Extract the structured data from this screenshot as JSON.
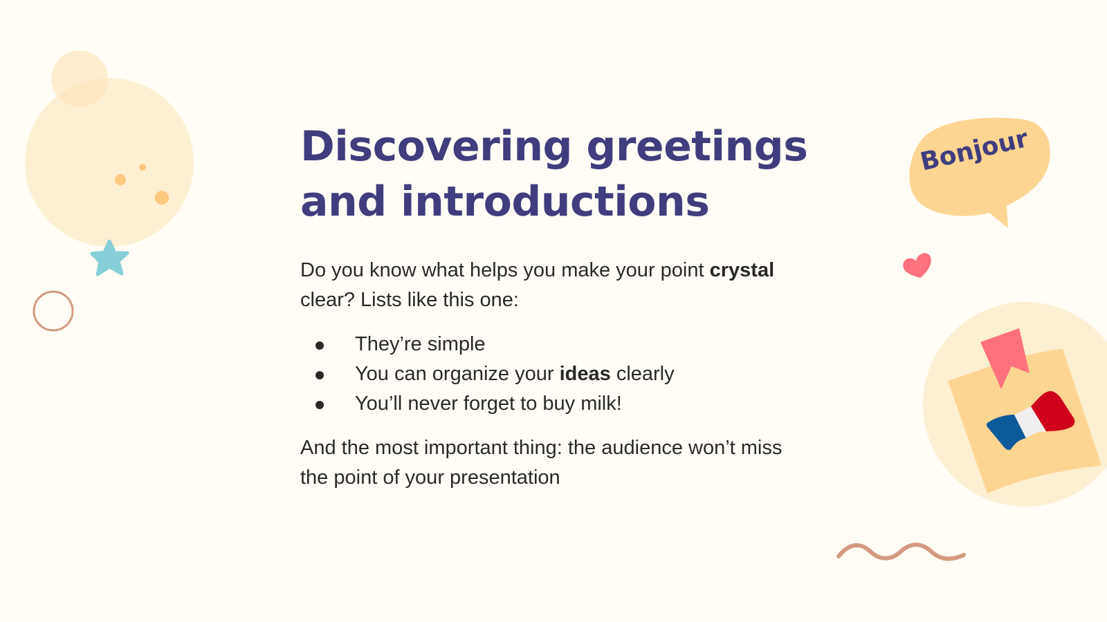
{
  "slide": {
    "title_line1": "Discovering greetings",
    "title_line2": "and introductions",
    "intro": {
      "bold": "crystal",
      "before": "Do you know what helps you make your point ",
      "after": " clear? Lists like this one:"
    },
    "bullets": [
      {
        "text": "They’re simple"
      },
      {
        "before": "You can organize your ",
        "bold": "ideas",
        "after": " clearly"
      },
      {
        "text": "You’ll never forget to buy milk!"
      }
    ],
    "closing": "And the most important thing: the audience won’t miss the point of your presentation",
    "speech_bubble": "Bonjour"
  },
  "colors": {
    "background": "#fffdf5",
    "title": "#403d7e",
    "text": "#2a2928",
    "peach": "#fdd592",
    "light_peach": "#fdefd2",
    "pink": "#ff717e",
    "teal": "#86cfd9",
    "brown": "#d49a80"
  },
  "icons": [
    "circle-decoration",
    "star-icon",
    "ring-decoration",
    "speech-bubble",
    "heart-icon",
    "bookmark-icon",
    "french-flag-icon",
    "wave-decoration"
  ]
}
